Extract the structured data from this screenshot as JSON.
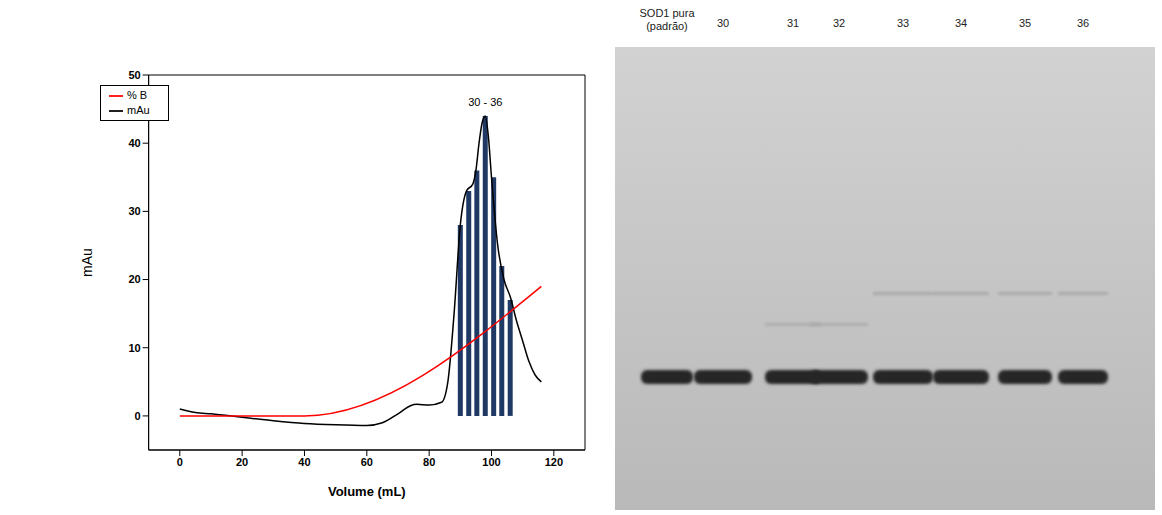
{
  "chart_data": {
    "type": "line",
    "xlabel": "Volume (mL)",
    "ylabel": "mAu",
    "xlim": [
      -10,
      130
    ],
    "xticks": [
      0,
      20,
      40,
      60,
      80,
      100,
      120
    ],
    "ylim": [
      -5,
      50
    ],
    "yticks": [
      0,
      10,
      20,
      30,
      40,
      50
    ],
    "legend": "upper left",
    "series": [
      {
        "name": "mAu",
        "color": "#000000",
        "x": [
          0,
          5,
          10,
          20,
          30,
          40,
          50,
          60,
          65,
          70,
          74,
          76,
          80,
          84,
          86,
          88,
          90,
          92,
          94,
          95,
          96,
          97,
          98,
          99,
          100,
          102,
          104,
          106,
          108,
          110,
          112,
          114,
          116
        ],
        "values": [
          1,
          0.5,
          0.3,
          -0.2,
          -0.7,
          -1.1,
          -1.3,
          -1.4,
          -1.0,
          0.3,
          1.5,
          1.7,
          1.6,
          2,
          5,
          15,
          28,
          33,
          34,
          36,
          40,
          43,
          44,
          41,
          35,
          25,
          20,
          17.5,
          14,
          11,
          8,
          6,
          5
        ]
      },
      {
        "name": "% B",
        "color": "#ff0000",
        "x": [
          0,
          40,
          116
        ],
        "values": [
          0,
          0,
          19
        ]
      }
    ],
    "fractions": {
      "annotation": "30 - 36",
      "color": "#1f3864",
      "x": [
        90,
        92.7,
        95.3,
        98,
        100.7,
        103.3,
        106
      ],
      "values": [
        28,
        33,
        36,
        44,
        35,
        22,
        17
      ]
    }
  },
  "gel": {
    "lanes": [
      "SOD1 pura (padrão)",
      "30",
      "31",
      "32",
      "33",
      "34",
      "35",
      "36"
    ]
  }
}
